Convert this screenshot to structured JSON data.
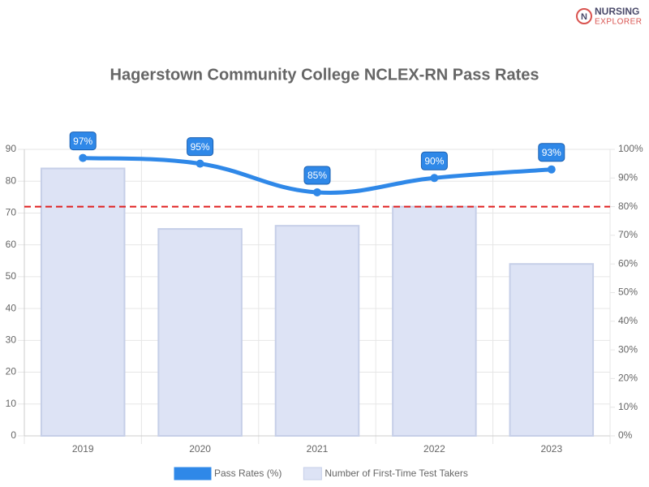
{
  "logo": {
    "line1": "NURSING",
    "line2": "EXPLORER"
  },
  "chart_data": {
    "type": "combo",
    "title": "Hagerstown Community College NCLEX-RN Pass Rates",
    "categories": [
      "2019",
      "2020",
      "2021",
      "2022",
      "2023"
    ],
    "series": [
      {
        "name": "Pass Rates (%)",
        "type": "line",
        "axis": "y2",
        "color": "#2f88e8",
        "values": [
          97,
          95,
          85,
          90,
          93
        ],
        "value_labels": [
          "97%",
          "95%",
          "85%",
          "90%",
          "93%"
        ]
      },
      {
        "name": "Number of First-Time Test Takers",
        "type": "bar",
        "color": "#dde3f5",
        "border_color": "#c6cfe8",
        "values": [
          84,
          65,
          66,
          72,
          54
        ]
      }
    ],
    "ylim": [
      0,
      90
    ],
    "yticks": [
      0,
      10,
      20,
      30,
      40,
      50,
      60,
      70,
      80,
      90
    ],
    "y2lim": [
      0,
      100
    ],
    "y2ticks": [
      {
        "value": 0,
        "label": "0%"
      },
      {
        "value": 10,
        "label": "10%"
      },
      {
        "value": 20,
        "label": "20%"
      },
      {
        "value": 30,
        "label": "30%"
      },
      {
        "value": 40,
        "label": "40%"
      },
      {
        "value": 50,
        "label": "50%"
      },
      {
        "value": 60,
        "label": "60%"
      },
      {
        "value": 70,
        "label": "70%"
      },
      {
        "value": 80,
        "label": "80%"
      },
      {
        "value": 90,
        "label": "90%"
      },
      {
        "value": 100,
        "label": "100%"
      }
    ],
    "reference_line": {
      "value": 80,
      "axis": "y2",
      "color": "#e02020"
    },
    "grid": true
  }
}
